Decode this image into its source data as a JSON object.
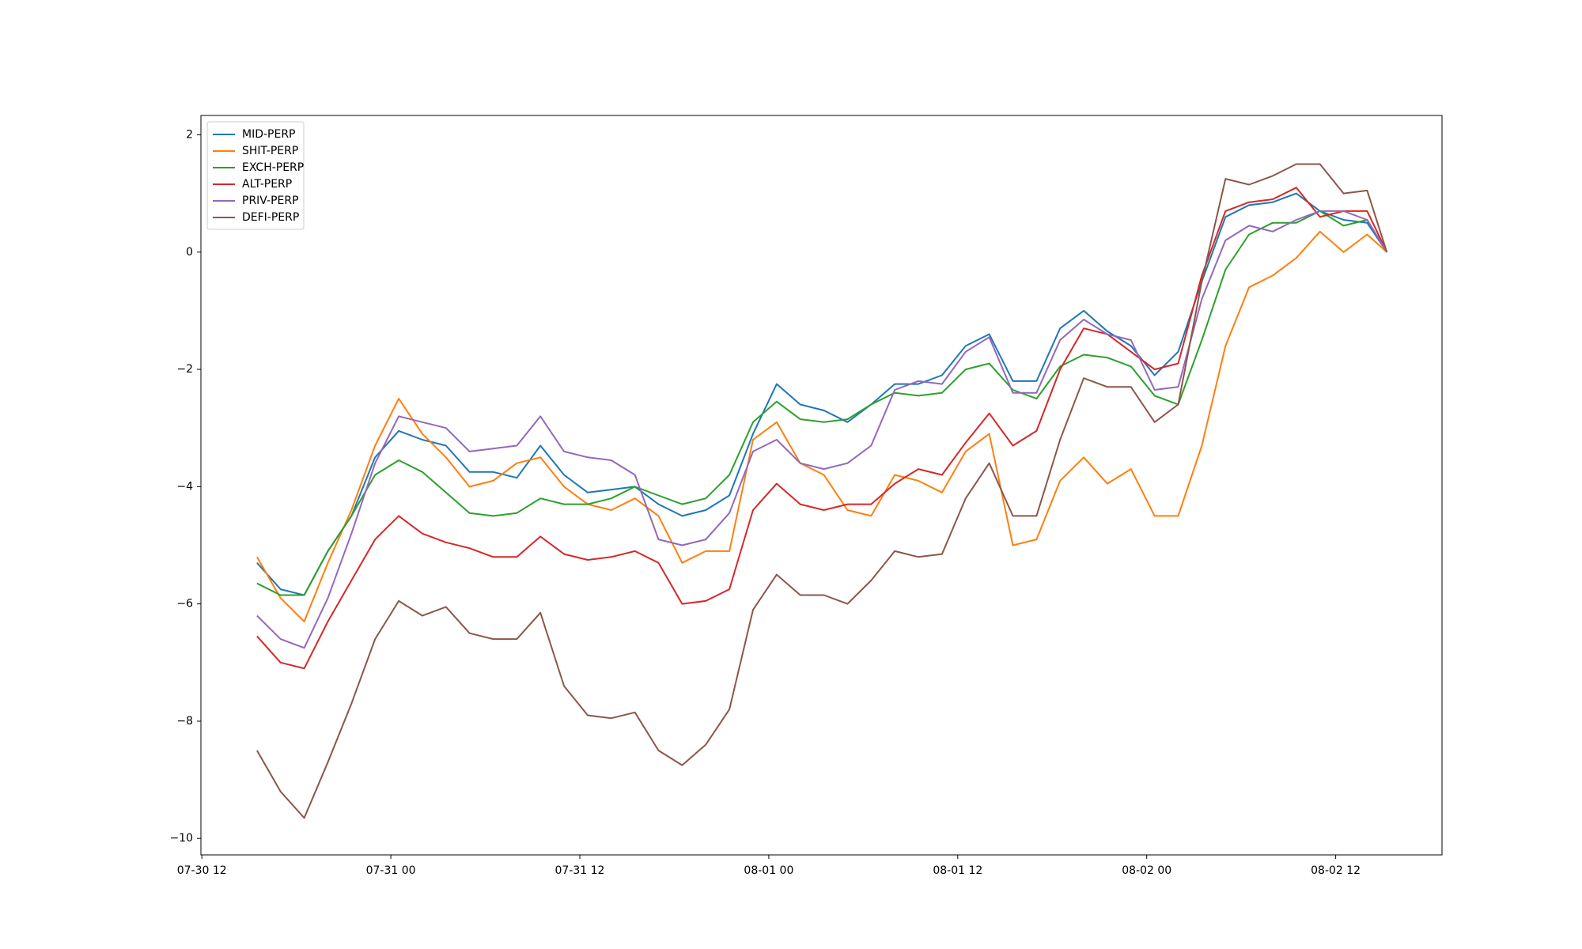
{
  "chart_data": {
    "type": "line",
    "x": [
      15.5,
      17,
      18.5,
      20,
      21.5,
      23,
      24.5,
      26,
      27.5,
      29,
      30.5,
      32,
      33.5,
      35,
      36.5,
      38,
      39.5,
      41,
      42.5,
      44,
      45.5,
      47,
      48.5,
      50,
      51.5,
      53,
      54.5,
      56,
      57.5,
      59,
      60.5,
      62,
      63.5,
      65,
      66.5,
      68,
      69.5,
      71,
      72.5,
      74,
      75.5,
      77,
      78.5,
      80,
      81.5,
      83,
      84.5,
      86,
      87.25
    ],
    "xlim": [
      11.94,
      90.75
    ],
    "xticks": [
      {
        "value": 12,
        "label": "07-30 12"
      },
      {
        "value": 24,
        "label": "07-31 00"
      },
      {
        "value": 36,
        "label": "07-31 12"
      },
      {
        "value": 48,
        "label": "08-01 00"
      },
      {
        "value": 60,
        "label": "08-01 12"
      },
      {
        "value": 72,
        "label": "08-02 00"
      },
      {
        "value": 84,
        "label": "08-02 12"
      }
    ],
    "ylim": [
      -10.28,
      2.33
    ],
    "yticks": [
      {
        "value": -10,
        "label": "−10"
      },
      {
        "value": -8,
        "label": "−8"
      },
      {
        "value": -6,
        "label": "−6"
      },
      {
        "value": -4,
        "label": "−4"
      },
      {
        "value": -2,
        "label": "−2"
      },
      0,
      2
    ],
    "legend": "upper left",
    "series": [
      {
        "name": "MID-PERP",
        "color": "#1f77b4",
        "values": [
          -5.3,
          -5.75,
          -5.85,
          -5.1,
          -4.5,
          -3.5,
          -3.05,
          -3.2,
          -3.3,
          -3.75,
          -3.75,
          -3.85,
          -3.3,
          -3.8,
          -4.1,
          -4.05,
          -4.0,
          -4.3,
          -4.5,
          -4.4,
          -4.15,
          -3.1,
          -2.25,
          -2.6,
          -2.7,
          -2.9,
          -2.6,
          -2.25,
          -2.25,
          -2.1,
          -1.6,
          -1.4,
          -2.2,
          -2.2,
          -1.3,
          -1.0,
          -1.35,
          -1.6,
          -2.1,
          -1.7,
          -0.5,
          0.6,
          0.8,
          0.85,
          1.0,
          0.7,
          0.55,
          0.5,
          0
        ]
      },
      {
        "name": "SHIT-PERP",
        "color": "#ff7f0e",
        "values": [
          -5.2,
          -5.9,
          -6.3,
          -5.3,
          -4.4,
          -3.3,
          -2.5,
          -3.1,
          -3.5,
          -4.0,
          -3.9,
          -3.6,
          -3.5,
          -4.0,
          -4.3,
          -4.4,
          -4.2,
          -4.5,
          -5.3,
          -5.1,
          -5.1,
          -3.2,
          -2.9,
          -3.6,
          -3.8,
          -4.4,
          -4.5,
          -3.8,
          -3.9,
          -4.1,
          -3.4,
          -3.1,
          -5.0,
          -4.9,
          -3.9,
          -3.5,
          -3.95,
          -3.7,
          -4.5,
          -4.5,
          -3.3,
          -1.6,
          -0.6,
          -0.4,
          -0.1,
          0.35,
          0.0,
          0.3,
          0
        ]
      },
      {
        "name": "EXCH-PERP",
        "color": "#2ca02c",
        "values": [
          -5.65,
          -5.85,
          -5.85,
          -5.1,
          -4.5,
          -3.8,
          -3.55,
          -3.75,
          -4.1,
          -4.45,
          -4.5,
          -4.45,
          -4.2,
          -4.3,
          -4.3,
          -4.2,
          -4.0,
          -4.15,
          -4.3,
          -4.2,
          -3.8,
          -2.9,
          -2.55,
          -2.85,
          -2.9,
          -2.85,
          -2.6,
          -2.4,
          -2.45,
          -2.4,
          -2.0,
          -1.9,
          -2.35,
          -2.5,
          -1.95,
          -1.75,
          -1.8,
          -1.95,
          -2.45,
          -2.6,
          -1.5,
          -0.3,
          0.3,
          0.5,
          0.5,
          0.7,
          0.45,
          0.55,
          0
        ]
      },
      {
        "name": "ALT-PERP",
        "color": "#d62728",
        "values": [
          -6.55,
          -7.0,
          -7.1,
          -6.3,
          -5.6,
          -4.9,
          -4.5,
          -4.8,
          -4.95,
          -5.05,
          -5.2,
          -5.2,
          -4.85,
          -5.15,
          -5.25,
          -5.2,
          -5.1,
          -5.3,
          -6.0,
          -5.95,
          -5.75,
          -4.4,
          -3.95,
          -4.3,
          -4.4,
          -4.3,
          -4.3,
          -3.95,
          -3.7,
          -3.8,
          -3.25,
          -2.75,
          -3.3,
          -3.05,
          -2.0,
          -1.3,
          -1.4,
          -1.7,
          -2.0,
          -1.9,
          -0.4,
          0.7,
          0.85,
          0.9,
          1.1,
          0.6,
          0.7,
          0.7,
          0
        ]
      },
      {
        "name": "PRIV-PERP",
        "color": "#9467bd",
        "values": [
          -6.2,
          -6.6,
          -6.75,
          -5.9,
          -4.8,
          -3.6,
          -2.8,
          -2.9,
          -3.0,
          -3.4,
          -3.35,
          -3.3,
          -2.8,
          -3.4,
          -3.5,
          -3.55,
          -3.8,
          -4.9,
          -5.0,
          -4.9,
          -4.45,
          -3.4,
          -3.2,
          -3.6,
          -3.7,
          -3.6,
          -3.3,
          -2.35,
          -2.2,
          -2.25,
          -1.7,
          -1.45,
          -2.4,
          -2.4,
          -1.5,
          -1.15,
          -1.4,
          -1.5,
          -2.35,
          -2.3,
          -0.8,
          0.2,
          0.45,
          0.35,
          0.55,
          0.7,
          0.7,
          0.55,
          0
        ]
      },
      {
        "name": "DEFI-PERP",
        "color": "#8c564b",
        "values": [
          -8.5,
          -9.2,
          -9.65,
          -8.7,
          -7.7,
          -6.6,
          -5.95,
          -6.2,
          -6.05,
          -6.5,
          -6.6,
          -6.6,
          -6.15,
          -7.4,
          -7.9,
          -7.95,
          -7.85,
          -8.5,
          -8.75,
          -8.4,
          -7.8,
          -6.1,
          -5.5,
          -5.85,
          -5.85,
          -6.0,
          -5.6,
          -5.1,
          -5.2,
          -5.15,
          -4.2,
          -3.6,
          -4.5,
          -4.5,
          -3.2,
          -2.15,
          -2.3,
          -2.3,
          -2.9,
          -2.6,
          -0.5,
          1.25,
          1.15,
          1.3,
          1.5,
          1.5,
          1.0,
          1.05,
          0
        ]
      }
    ]
  }
}
